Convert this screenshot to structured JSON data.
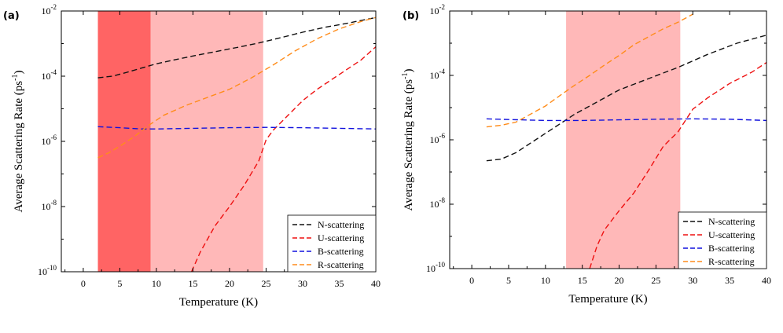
{
  "chart_data": [
    {
      "type": "line",
      "panel_label": "(a)",
      "xlabel": "Temperature (K)",
      "ylabel_prefix": "Average Scattering Rate (ps",
      "ylabel_sup": "-1",
      "ylabel_suffix": ")",
      "xlim": [
        -3,
        40
      ],
      "ylim_log10": [
        -10,
        -2
      ],
      "y_scale": "log",
      "x_ticks": [
        0,
        5,
        10,
        15,
        20,
        25,
        30,
        35,
        40
      ],
      "x_tick_labels": [
        "0",
        "5",
        "10",
        "15",
        "20",
        "25",
        "30",
        "35",
        "40"
      ],
      "y_ticks_exp": [
        -2,
        -4,
        -6,
        -8,
        -10
      ],
      "y_tick_base": "10",
      "y_tick_exponents": [
        "-2",
        "-4",
        "-6",
        "-8",
        "-10"
      ],
      "shaded_regions": [
        {
          "x0": 2,
          "x1": 9.2,
          "color": "#ff6464"
        },
        {
          "x0": 9.2,
          "x1": 24.6,
          "color": "#ffb8b8"
        }
      ],
      "legend_position": "bottom-right",
      "series": [
        {
          "name": "N-scattering",
          "color": "#111111",
          "x": [
            2,
            4,
            6,
            8,
            10,
            12,
            15,
            18,
            21,
            24,
            27,
            30,
            33,
            36,
            40
          ],
          "log10y": [
            -4.05,
            -4.0,
            -3.88,
            -3.75,
            -3.62,
            -3.52,
            -3.38,
            -3.25,
            -3.12,
            -2.98,
            -2.82,
            -2.65,
            -2.5,
            -2.38,
            -2.2
          ]
        },
        {
          "name": "U-scattering",
          "color": "#ee1111",
          "x": [
            14.8,
            16,
            18,
            20,
            22,
            24,
            25,
            26,
            28,
            30,
            32,
            34,
            36,
            38,
            40
          ],
          "log10y": [
            -10,
            -9.4,
            -8.6,
            -8.0,
            -7.35,
            -6.6,
            -5.95,
            -5.65,
            -5.2,
            -4.75,
            -4.4,
            -4.1,
            -3.8,
            -3.5,
            -3.1
          ]
        },
        {
          "name": "B-scattering",
          "color": "#1111dd",
          "x": [
            2,
            5,
            8,
            10,
            15,
            20,
            25,
            30,
            35,
            40
          ],
          "log10y": [
            -5.55,
            -5.58,
            -5.62,
            -5.62,
            -5.6,
            -5.58,
            -5.57,
            -5.58,
            -5.6,
            -5.62
          ]
        },
        {
          "name": "R-scattering",
          "color": "#ff8c1a",
          "x": [
            2,
            3.5,
            5,
            7,
            9,
            11,
            14,
            17,
            20,
            23,
            26,
            29,
            32,
            35,
            38,
            40
          ],
          "log10y": [
            -6.5,
            -6.35,
            -6.15,
            -5.85,
            -5.5,
            -5.2,
            -4.9,
            -4.65,
            -4.4,
            -4.05,
            -3.65,
            -3.22,
            -2.85,
            -2.55,
            -2.32,
            -2.2
          ]
        }
      ]
    },
    {
      "type": "line",
      "panel_label": "(b)",
      "xlabel": "Temperature (K)",
      "ylabel_prefix": "Average Scattering Rate (ps",
      "ylabel_sup": "-1",
      "ylabel_suffix": ")",
      "xlim": [
        -3,
        40
      ],
      "ylim_log10": [
        -10,
        -2
      ],
      "y_scale": "log",
      "x_ticks": [
        0,
        5,
        10,
        15,
        20,
        25,
        30,
        35,
        40
      ],
      "x_tick_labels": [
        "0",
        "5",
        "10",
        "15",
        "20",
        "25",
        "30",
        "35",
        "40"
      ],
      "y_ticks_exp": [
        -2,
        -4,
        -6,
        -8,
        -10
      ],
      "y_tick_base": "10",
      "y_tick_exponents": [
        "-2",
        "-4",
        "-6",
        "-8",
        "-10"
      ],
      "shaded_regions": [
        {
          "x0": 12.8,
          "x1": 28.3,
          "color": "#ffb8b8"
        }
      ],
      "legend_position": "bottom-right",
      "series": [
        {
          "name": "N-scattering",
          "color": "#111111",
          "x": [
            2,
            4,
            6,
            8,
            10,
            12,
            14,
            16,
            18,
            20,
            24,
            28,
            32,
            36,
            40
          ],
          "log10y": [
            -6.65,
            -6.6,
            -6.4,
            -6.1,
            -5.8,
            -5.5,
            -5.2,
            -4.95,
            -4.7,
            -4.45,
            -4.1,
            -3.75,
            -3.35,
            -3.0,
            -2.75
          ]
        },
        {
          "name": "U-scattering",
          "color": "#ee1111",
          "x": [
            16,
            17,
            18,
            20,
            22,
            24,
            26,
            28,
            30,
            32,
            35,
            38,
            40
          ],
          "log10y": [
            -10,
            -9.3,
            -8.8,
            -8.2,
            -7.65,
            -6.95,
            -6.2,
            -5.75,
            -5.05,
            -4.7,
            -4.25,
            -3.9,
            -3.6
          ]
        },
        {
          "name": "B-scattering",
          "color": "#1111dd",
          "x": [
            2,
            5,
            10,
            15,
            20,
            25,
            30,
            35,
            40
          ],
          "log10y": [
            -5.35,
            -5.37,
            -5.4,
            -5.4,
            -5.38,
            -5.36,
            -5.35,
            -5.36,
            -5.4
          ]
        },
        {
          "name": "R-scattering",
          "color": "#ff8c1a",
          "x": [
            2,
            4,
            6,
            8,
            10,
            12,
            14,
            16,
            18,
            20,
            22,
            24,
            26,
            28,
            30
          ],
          "log10y": [
            -5.6,
            -5.55,
            -5.45,
            -5.2,
            -4.95,
            -4.62,
            -4.3,
            -4.0,
            -3.68,
            -3.38,
            -3.05,
            -2.8,
            -2.55,
            -2.35,
            -2.1
          ]
        }
      ]
    }
  ]
}
